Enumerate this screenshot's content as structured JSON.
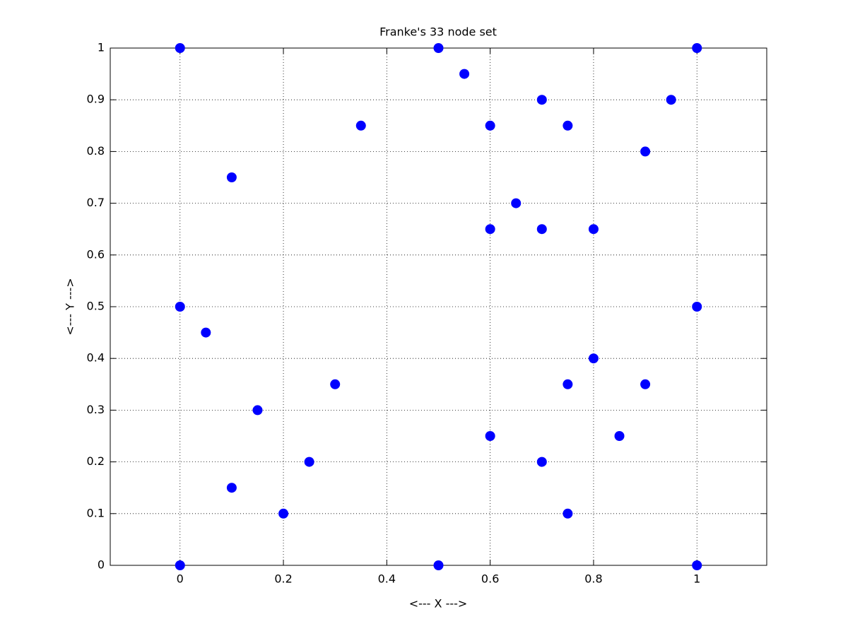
{
  "chart_data": {
    "type": "scatter",
    "title": "Franke's 33 node set",
    "xlabel": "<--- X --->",
    "ylabel": "<--- Y --->",
    "x": [
      0,
      0.5,
      1,
      0.55,
      0.7,
      0.95,
      0.35,
      0.6,
      0.75,
      0.9,
      0.1,
      0.65,
      0.6,
      0.7,
      0.8,
      0,
      1,
      0.05,
      0.8,
      0.3,
      0.75,
      0.9,
      0.15,
      0.6,
      0.85,
      0.25,
      0.7,
      0.1,
      0.2,
      0.75,
      0,
      0.5,
      1
    ],
    "values": [
      1,
      1,
      1,
      0.95,
      0.9,
      0.9,
      0.85,
      0.85,
      0.85,
      0.8,
      0.75,
      0.7,
      0.65,
      0.65,
      0.65,
      0.5,
      0.5,
      0.45,
      0.4,
      0.35,
      0.35,
      0.35,
      0.3,
      0.25,
      0.25,
      0.2,
      0.2,
      0.15,
      0.1,
      0.1,
      0,
      0,
      0
    ],
    "color": "#0000ff",
    "xlim": [
      -0.135,
      1.135
    ],
    "ylim": [
      0,
      1
    ],
    "xticks": [
      0,
      0.2,
      0.4,
      0.6,
      0.8,
      1
    ],
    "yticks": [
      0,
      0.1,
      0.2,
      0.3,
      0.4,
      0.5,
      0.6,
      0.7,
      0.8,
      0.9,
      1
    ],
    "grid": true
  }
}
